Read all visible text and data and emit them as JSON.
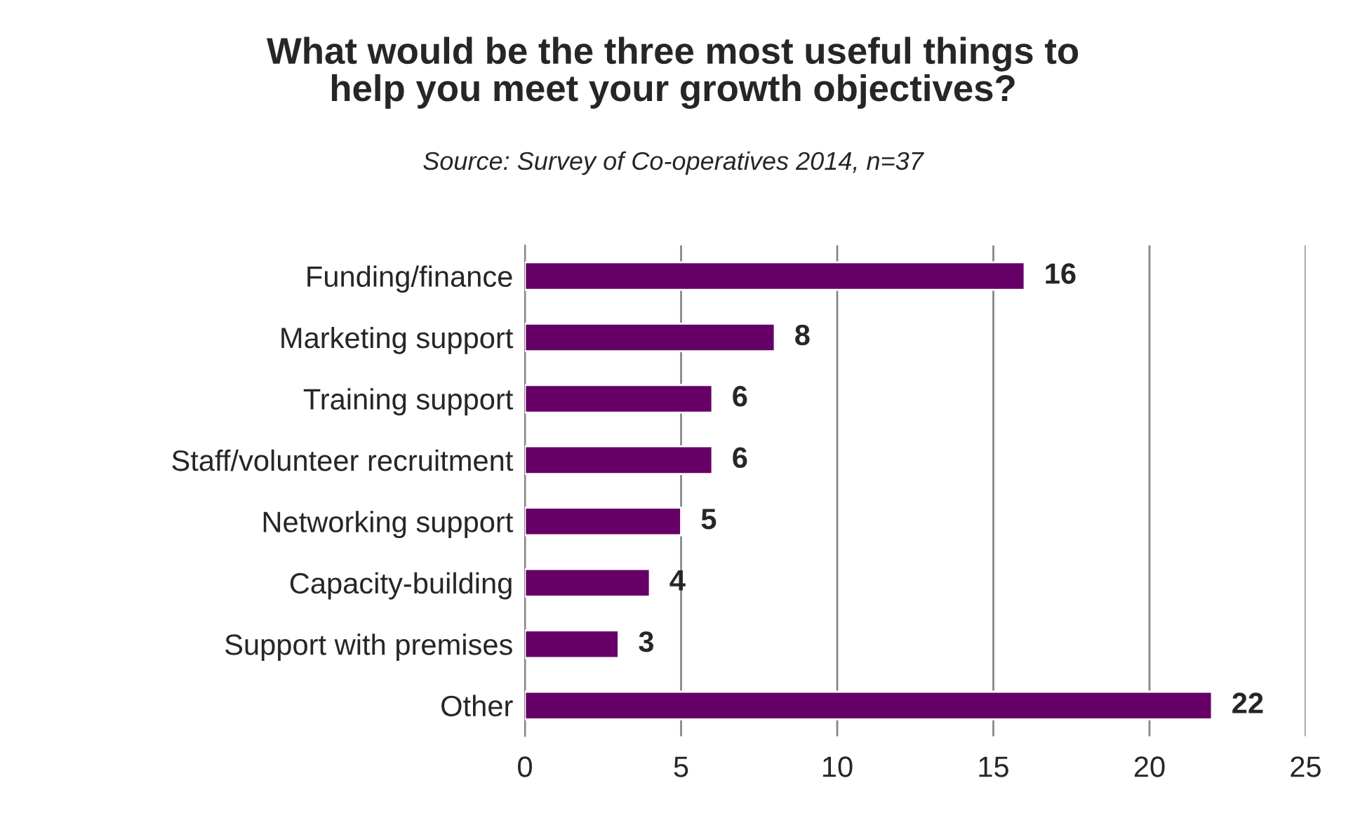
{
  "chart_data": {
    "type": "bar",
    "orientation": "horizontal",
    "title": "What would be the three most useful things to\nhelp you meet your growth objectives?",
    "subtitle": "Source: Survey of Co-operatives 2014, n=37",
    "categories": [
      "Funding/finance",
      "Marketing support",
      "Training support",
      "Staff/volunteer recruitment",
      "Networking support",
      "Capacity-building",
      "Support with premises",
      "Other"
    ],
    "values": [
      16,
      8,
      6,
      6,
      5,
      4,
      3,
      22
    ],
    "color": "#660066",
    "xlim": [
      0,
      25
    ],
    "xticks": [
      0,
      5,
      10,
      15,
      20,
      25
    ],
    "grid": "x",
    "data_labels": true
  }
}
